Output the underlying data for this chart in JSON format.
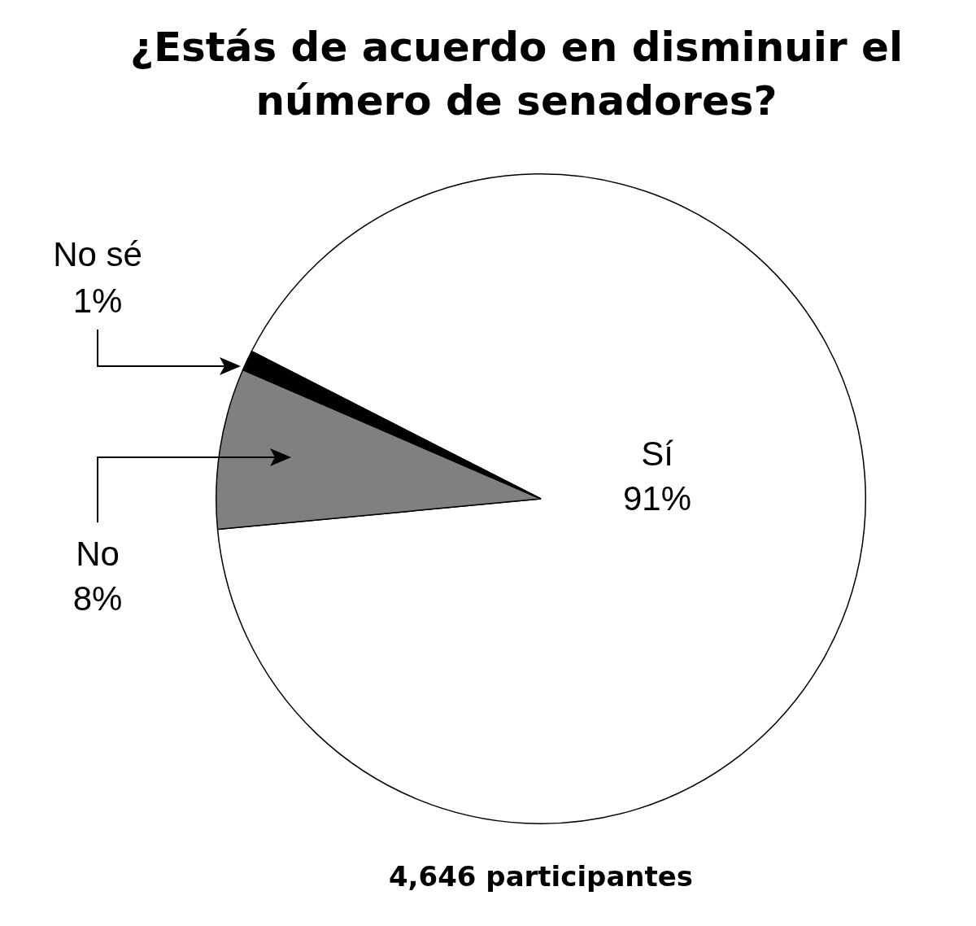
{
  "chart_data": {
    "type": "pie",
    "title": "¿Estás de acuerdo en disminuir el número de senadores?",
    "categories": [
      "Sí",
      "No",
      "No sé"
    ],
    "values": [
      91,
      8,
      1
    ],
    "value_labels": [
      "91%",
      "8%",
      "1%"
    ],
    "colors": [
      "#ffffff",
      "#808080",
      "#000000"
    ],
    "annotations": [
      "4,646 participantes"
    ]
  }
}
